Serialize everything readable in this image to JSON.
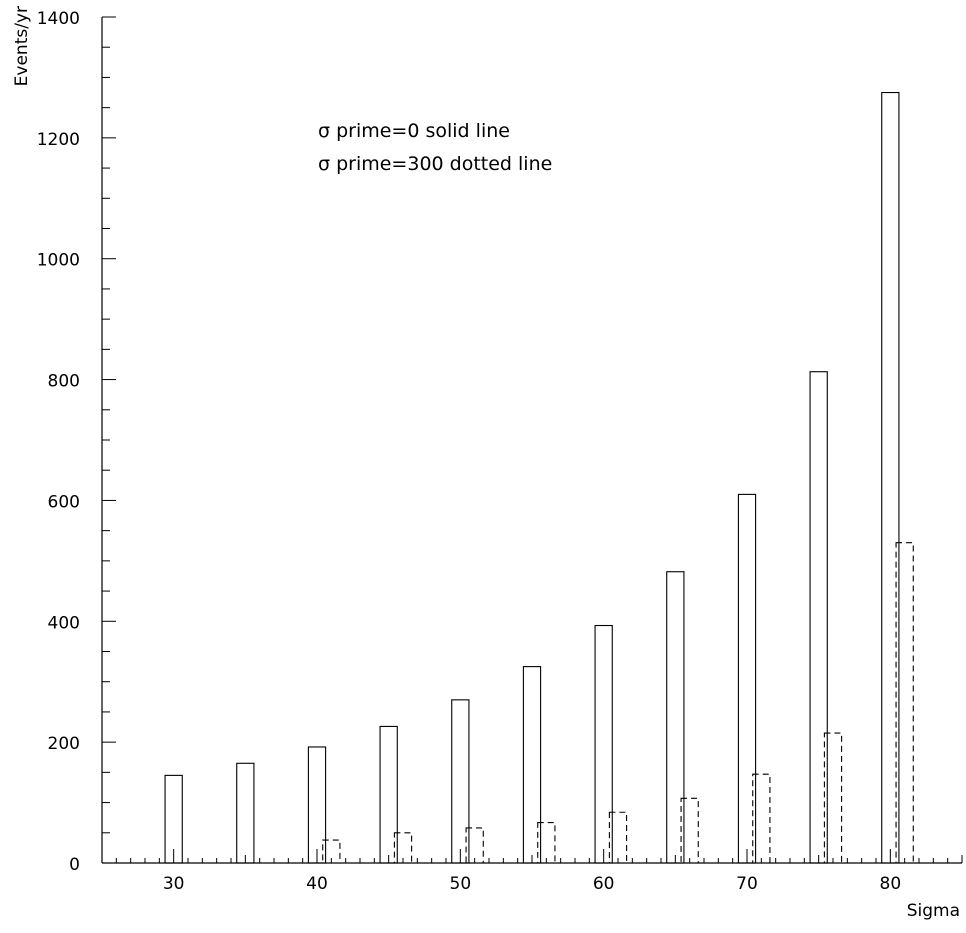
{
  "chart_data": {
    "type": "bar",
    "title": "",
    "xlabel": "Sigma",
    "ylabel": "Events/yr",
    "xlim": [
      25,
      85
    ],
    "ylim": [
      0,
      1400
    ],
    "x_major_ticks": [
      30,
      40,
      50,
      60,
      70,
      80
    ],
    "y_major_ticks": [
      0,
      200,
      400,
      600,
      800,
      1000,
      1200,
      1400
    ],
    "grid": false,
    "annotations": [
      "σ prime=0 solid line",
      "σ prime=300 dotted line"
    ],
    "series": [
      {
        "style": "solid",
        "x": [
          30,
          35,
          40,
          45,
          50,
          55,
          60,
          65,
          70,
          75,
          80
        ],
        "values": [
          145,
          165,
          192,
          226,
          270,
          325,
          393,
          482,
          610,
          813,
          1275
        ]
      },
      {
        "style": "dashed",
        "x": [
          41,
          46,
          51,
          56,
          61,
          66,
          71,
          76,
          81
        ],
        "values": [
          38,
          50,
          58,
          67,
          84,
          107,
          147,
          215,
          530
        ]
      }
    ]
  }
}
